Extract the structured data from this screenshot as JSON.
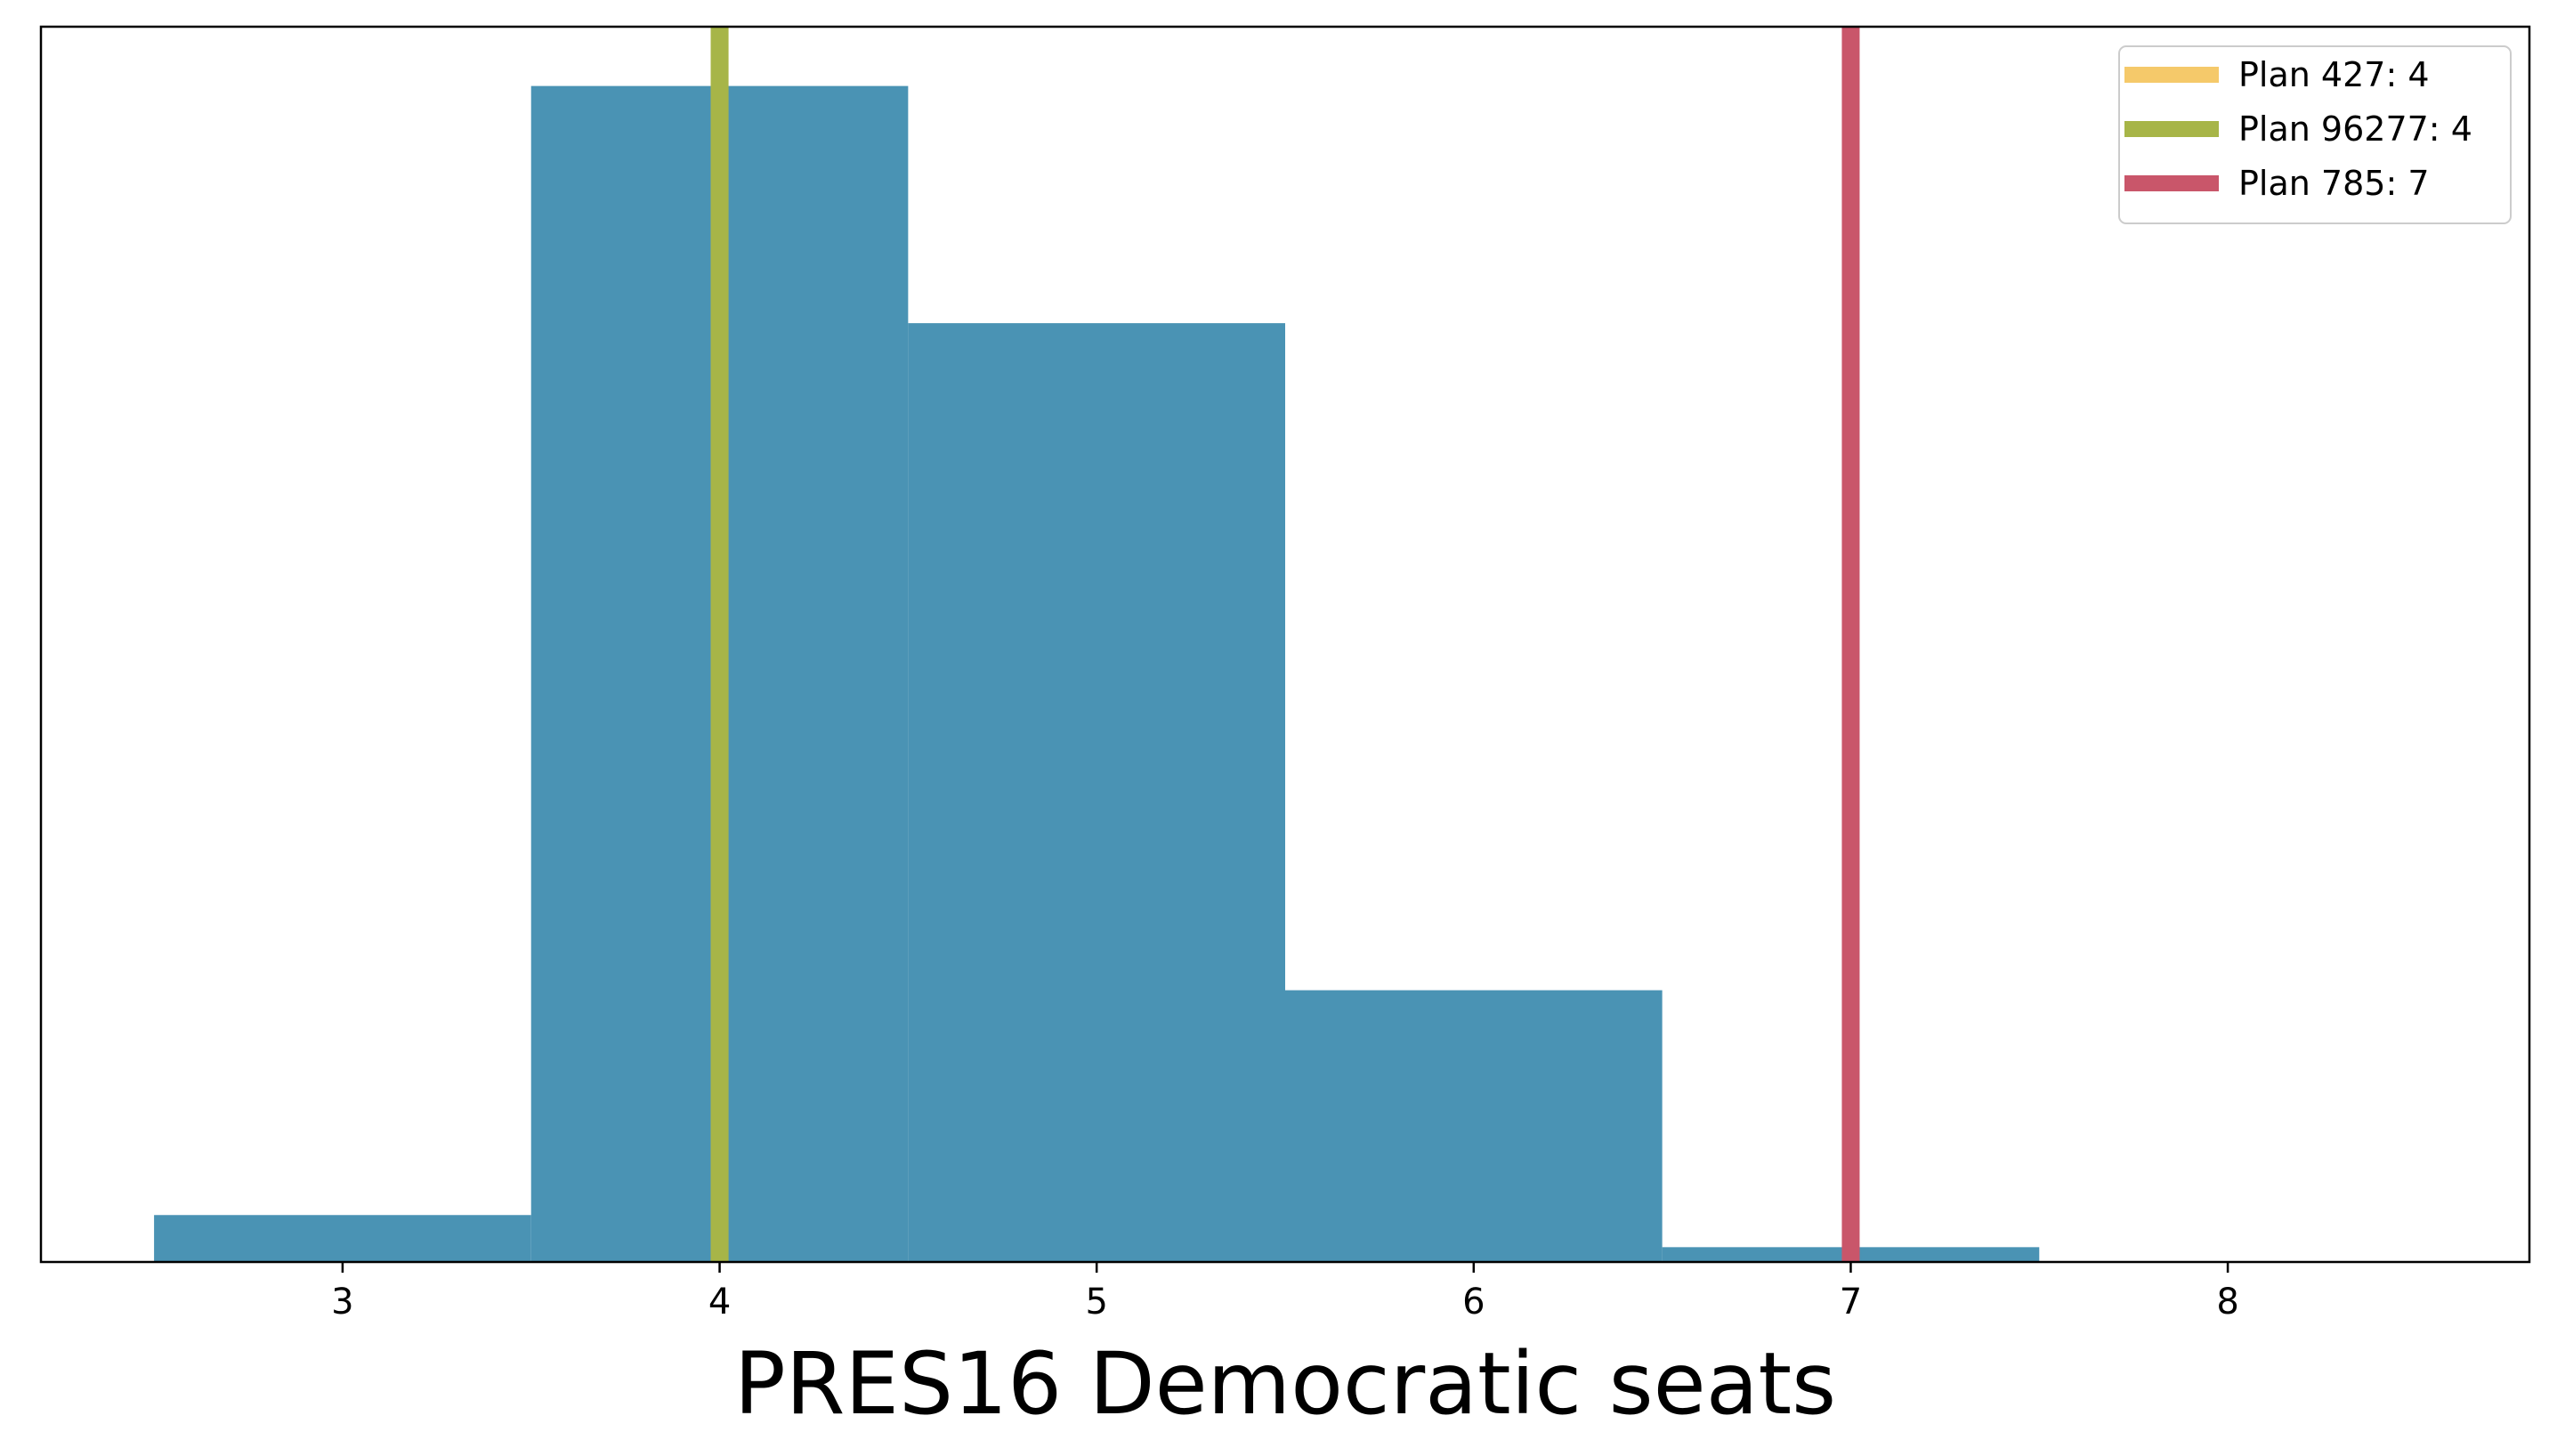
{
  "chart_data": {
    "type": "bar",
    "xlabel": "PRES16 Democratic seats",
    "ylabel": "",
    "xlim": [
      2.2,
      8.8
    ],
    "ylim": [
      0,
      1.0
    ],
    "xticks": [
      3,
      4,
      5,
      6,
      7,
      8
    ],
    "yticks_visible": false,
    "grid": false,
    "bar_color": "#4a93b4",
    "bins": [
      {
        "left": 2.5,
        "right": 3.5,
        "value": 0.038
      },
      {
        "left": 3.5,
        "right": 4.5,
        "value": 0.952
      },
      {
        "left": 4.5,
        "right": 5.5,
        "value": 0.76
      },
      {
        "left": 5.5,
        "right": 6.5,
        "value": 0.22
      },
      {
        "left": 6.5,
        "right": 7.5,
        "value": 0.012
      }
    ],
    "vlines": [
      {
        "name": "Plan 427: 4",
        "x": 4,
        "color": "#f5c96a"
      },
      {
        "name": "Plan 96277: 4",
        "x": 4,
        "color": "#a7b548"
      },
      {
        "name": "Plan 785: 7",
        "x": 7,
        "color": "#c9566a"
      }
    ],
    "legend": {
      "placement": "top-right",
      "entries": [
        "Plan 427: 4",
        "Plan 96277: 4",
        "Plan 785: 7"
      ]
    }
  }
}
